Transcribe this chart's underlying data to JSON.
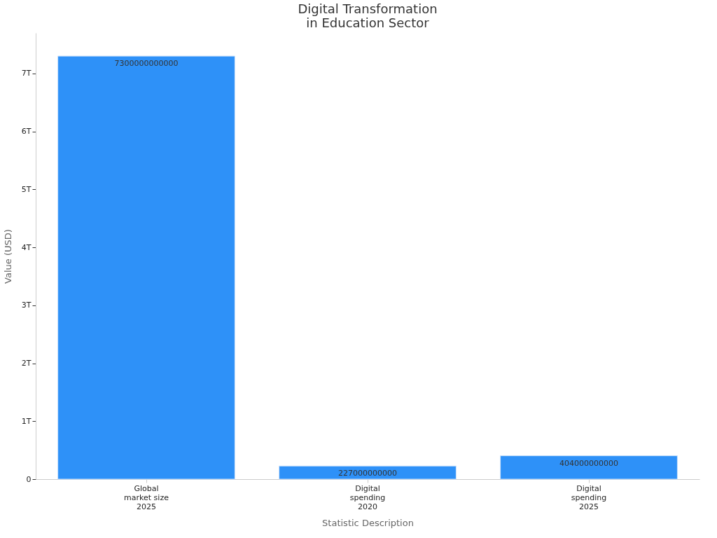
{
  "chart_data": {
    "type": "bar",
    "title": "Digital Transformation in Education Sector",
    "xlabel": "Statistic Description",
    "ylabel": "Value (USD)",
    "categories": [
      "Global market size 2025",
      "Digital spending 2020",
      "Digital spending 2025"
    ],
    "values": [
      7300000000000,
      227000000000,
      404000000000
    ],
    "color": "#2e91f8",
    "ylim": [
      0,
      7700000000000
    ],
    "yticks": [
      0,
      {
        "value": 1000000000000,
        "label": "1T"
      },
      {
        "value": 2000000000000,
        "label": "2T"
      },
      {
        "value": 3000000000000,
        "label": "3T"
      },
      {
        "value": 4000000000000,
        "label": "4T"
      },
      {
        "value": 5000000000000,
        "label": "5T"
      },
      {
        "value": 6000000000000,
        "label": "6T"
      },
      {
        "value": 7000000000000,
        "label": "7T"
      }
    ],
    "data_labels": true,
    "grid": false
  }
}
